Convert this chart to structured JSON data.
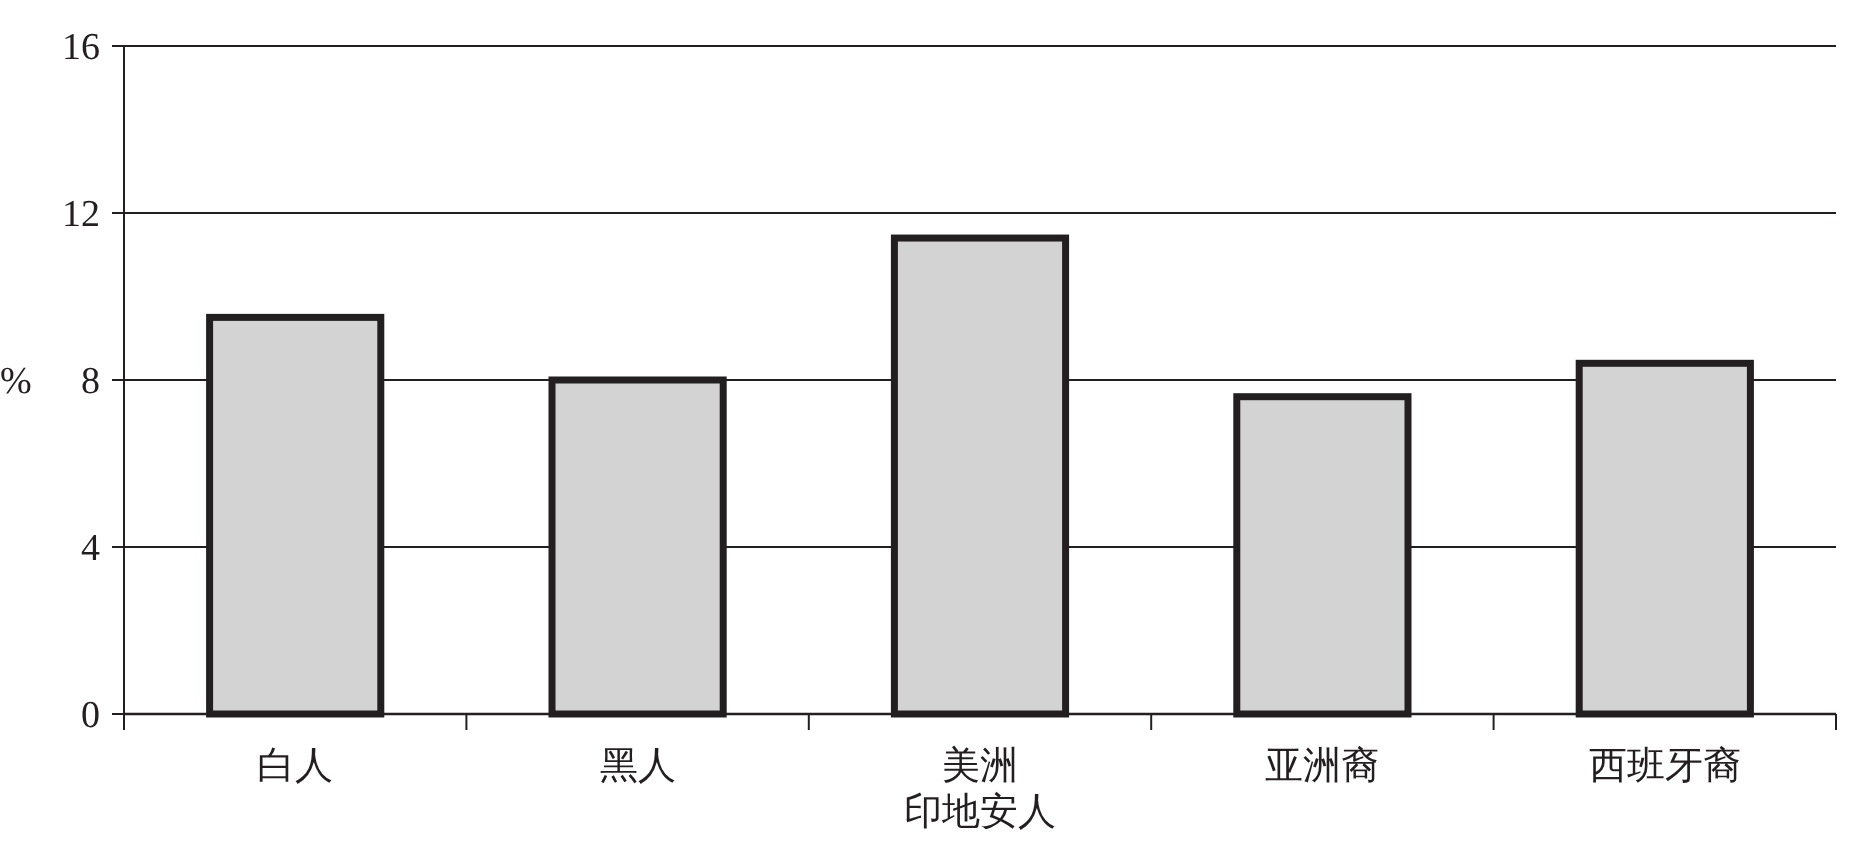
{
  "chart_data": {
    "type": "bar",
    "ylabel": "%",
    "categories": [
      "白人",
      "黑人",
      "美洲印地安人",
      "亚洲裔",
      "西班牙裔"
    ],
    "values": [
      9.5,
      8.0,
      11.4,
      7.6,
      8.4
    ],
    "color": "#d3d3d3",
    "ylim": [
      0,
      16
    ],
    "yticks": [
      0,
      4,
      8,
      12,
      16
    ],
    "grid": "y"
  }
}
